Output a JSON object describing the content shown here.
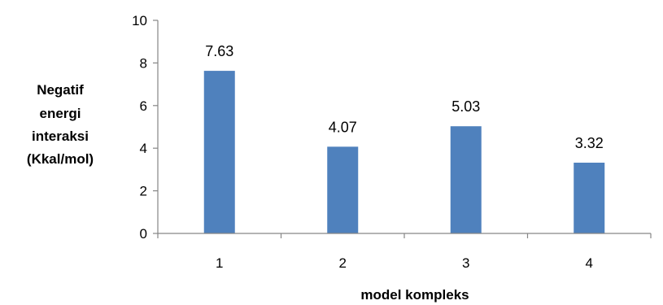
{
  "chart_data": {
    "type": "bar",
    "categories": [
      "1",
      "2",
      "3",
      "4"
    ],
    "values": [
      7.63,
      4.07,
      5.03,
      3.32
    ],
    "data_labels": [
      "7.63",
      "4.07",
      "5.03",
      "3.32"
    ],
    "xlabel": "model kompleks",
    "ylabel_lines": [
      "Negatif",
      "energi",
      "interaksi",
      "(Kkal/mol)"
    ],
    "ylim": [
      0,
      10
    ],
    "yticks": [
      "0",
      "2",
      "4",
      "6",
      "8",
      "10"
    ],
    "grid": false,
    "bar_color": "#4F81BD",
    "axis_color": "#868686"
  }
}
